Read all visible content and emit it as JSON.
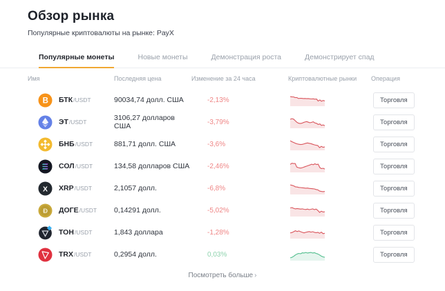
{
  "page": {
    "title": "Обзор рынка",
    "subtitle": "Популярные криптовалюты на рынке: PayX"
  },
  "tabs": [
    {
      "label": "Популярные монеты",
      "active": true
    },
    {
      "label": "Новые монеты",
      "active": false
    },
    {
      "label": "Демонстрация роста",
      "active": false
    },
    {
      "label": "Демонстрирует спад",
      "active": false
    }
  ],
  "table": {
    "headers": [
      "Имя",
      "Последняя цена",
      "Изменение за 24 часа",
      "Криптовалютные рынки",
      "Операция"
    ],
    "trade_label": "Торговля",
    "rows": [
      {
        "icon": "btc",
        "symbol": "БТК",
        "pair": "/USDT",
        "price": "90034,74 долл. США",
        "change": "-2,13%",
        "trend": "down",
        "spark": [
          9.2,
          9,
          8.9,
          8.2,
          8.3,
          7.3,
          7.5,
          7.4,
          7.2,
          7.3,
          7.1,
          7.2,
          6.9,
          6.8,
          6.9,
          6.6,
          6.7,
          4.6,
          5.8,
          4.4,
          5.2,
          4.8
        ]
      },
      {
        "icon": "eth",
        "symbol": "ЭТ",
        "pair": "/USDT",
        "price": "3106,27 долларов США",
        "change": "-3,79%",
        "trend": "down",
        "spark": [
          8.6,
          9.2,
          8.8,
          7.2,
          5.6,
          4.6,
          4.2,
          4.5,
          5.2,
          5.8,
          6.2,
          5.6,
          5,
          5.4,
          6,
          4.8,
          4.4,
          3.2,
          3.8,
          2.2,
          2.8,
          2
        ]
      },
      {
        "icon": "bnb",
        "symbol": "БНБ",
        "pair": "/USDT",
        "price": "881,71 долл. США",
        "change": "-3,6%",
        "trend": "down",
        "spark": [
          9.2,
          8.2,
          7.4,
          6.6,
          6,
          5.6,
          5.3,
          5.5,
          6,
          6.6,
          6.9,
          6.6,
          6.2,
          5.6,
          5,
          4.6,
          4.2,
          2,
          3.4,
          2.4,
          2.8
        ]
      },
      {
        "icon": "sol",
        "symbol": "СОЛ",
        "pair": "/USDT",
        "price": "134,58 долларов США",
        "change": "-2,46%",
        "trend": "down",
        "spark": [
          7.6,
          8.8,
          8.4,
          8.6,
          4.8,
          4.2,
          3.8,
          4,
          4.6,
          5.2,
          5.8,
          6.4,
          7,
          7.8,
          7.2,
          8.2,
          7.4,
          7.8,
          4.2,
          3.2,
          3.6,
          2.8
        ]
      },
      {
        "icon": "xrp",
        "symbol": "XRP",
        "pair": "/USDT",
        "price": "2,1057 долл.",
        "change": "-6,8%",
        "trend": "down",
        "spark": [
          9.2,
          8.8,
          8.2,
          7.2,
          7,
          6.6,
          6.4,
          6.2,
          6,
          5.8,
          5.9,
          5.6,
          5.4,
          5.2,
          5,
          4.4,
          4.1,
          2.8,
          2.4,
          2.2,
          2.4
        ]
      },
      {
        "icon": "doge",
        "symbol": "ДОГЕ",
        "pair": "/USDT",
        "price": "0,14291 долл.",
        "change": "-5,02%",
        "trend": "down",
        "spark": [
          8.2,
          8.6,
          7.8,
          7.2,
          7.6,
          7.3,
          7,
          7.2,
          6.8,
          6.6,
          7,
          6.4,
          6.8,
          7.2,
          6.4,
          7,
          5.6,
          3.6,
          4.8,
          4,
          4.2
        ]
      },
      {
        "icon": "ton",
        "symbol": "ТОН",
        "pair": "/USDT",
        "price": "1,843 доллара",
        "change": "-1,28%",
        "trend": "down",
        "spark": [
          5.2,
          5.6,
          6.4,
          7.4,
          6.6,
          7.2,
          6.4,
          5.8,
          5.2,
          5.8,
          6.2,
          6.6,
          6,
          6.4,
          5.8,
          5.4,
          5.8,
          4.8,
          6,
          4.4,
          4.8
        ]
      },
      {
        "icon": "trx",
        "symbol": "TRX",
        "pair": "/USDT",
        "price": "0,2954 долл.",
        "change": "0,03%",
        "trend": "up",
        "spark": [
          2.2,
          2.8,
          3.8,
          5.2,
          6.2,
          6.8,
          6.4,
          7.4,
          7.2,
          7.8,
          7.2,
          7.6,
          7.8,
          7.2,
          7.6,
          6.8,
          6.2,
          5.2,
          4,
          3.2,
          2.8
        ]
      }
    ]
  },
  "footer": {
    "more_label": "Посмотреть больше",
    "arrow": "›"
  },
  "colors": {
    "accent": "#f0a732",
    "down_text": "#ef8585",
    "up_text": "#8fd3ae",
    "spark_down_line": "#d9555c",
    "spark_down_fill": "rgba(217,85,92,0.16)",
    "spark_up_line": "#4fbd8c",
    "spark_up_fill": "rgba(79,189,140,0.15)"
  }
}
